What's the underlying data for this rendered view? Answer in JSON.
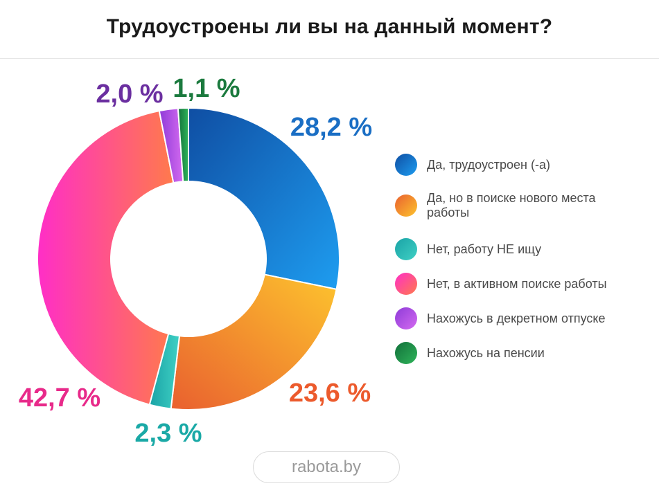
{
  "title": "Трудоустроены ли вы на данный момент?",
  "source": "rabota.by",
  "colors": {
    "employed": "#1b7fd8",
    "employed_searching": "#f28a3a",
    "not_looking": "#22b3b0",
    "actively_searching": "#ff3f8e",
    "maternity": "#a94fe0",
    "pension": "#1f9a4b"
  },
  "chart_data": {
    "type": "pie",
    "variant": "donut",
    "title": "Трудоустроены ли вы на данный момент?",
    "legend_position": "right",
    "slices": [
      {
        "label": "Да, трудоустроен (-а)",
        "value": 28.2,
        "display": "28,2 %",
        "color_key": "employed"
      },
      {
        "label": "Да, но в поиске нового места работы",
        "value": 23.6,
        "display": "23,6 %",
        "color_key": "employed_searching"
      },
      {
        "label": "Нет, работу НЕ ищу",
        "value": 2.3,
        "display": "2,3 %",
        "color_key": "not_looking"
      },
      {
        "label": "Нет, в активном поиске работы",
        "value": 42.7,
        "display": "42,7 %",
        "color_key": "actively_searching"
      },
      {
        "label": "Нахожусь в декретном отпуске",
        "value": 2.0,
        "display": "2,0 %",
        "color_key": "maternity"
      },
      {
        "label": "Нахожусь на пенсии",
        "value": 1.1,
        "display": "1,1 %",
        "color_key": "pension"
      }
    ]
  }
}
